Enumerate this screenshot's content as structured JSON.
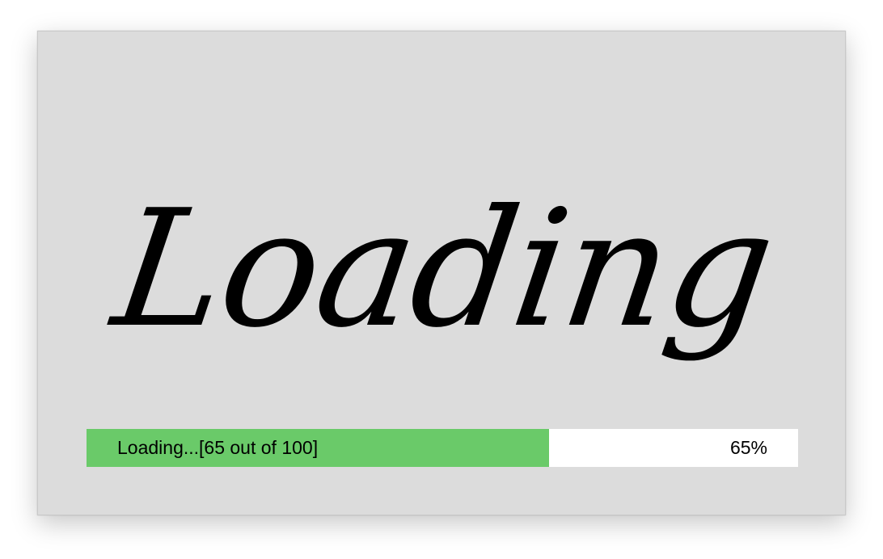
{
  "splash": {
    "title": "Loading"
  },
  "progress": {
    "label": "Loading...[65 out of 100]",
    "percent_text": "65%",
    "value": 65,
    "max": 100,
    "fill_color": "#6aca69",
    "track_color": "#ffffff"
  },
  "colors": {
    "window_background": "#dcdcdc",
    "text": "#000000"
  }
}
